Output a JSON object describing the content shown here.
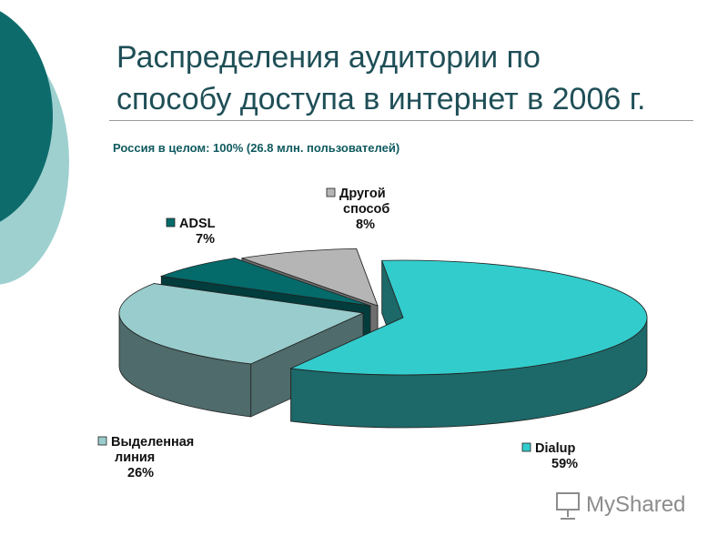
{
  "slide": {
    "title_lines": [
      "Распределения аудитории по",
      "способу доступа в интернет в 2006 г."
    ],
    "subtitle": "Россия в целом: 100% (26.8 млн. пользователей)"
  },
  "colors": {
    "deco_dark": "#0e6b6b",
    "deco_light": "#9ed0d0",
    "title": "#1f4f57",
    "subtitle": "#0f5a5f"
  },
  "watermark": {
    "text": "MyShared"
  },
  "chart_data": {
    "type": "pie",
    "style": "3d-exploded",
    "slices": [
      {
        "label_lines": [
          "Dialup"
        ],
        "pct_label": "59%",
        "value": 59,
        "top": "#33cccc",
        "side": "#1d6868"
      },
      {
        "label_lines": [
          "Выделенная",
          "линия"
        ],
        "pct_label": "26%",
        "value": 26,
        "top": "#99cccc",
        "side": "#4f6b6b"
      },
      {
        "label_lines": [
          "ADSL"
        ],
        "pct_label": "7%",
        "value": 7,
        "top": "#046a6a",
        "side": "#023c3c"
      },
      {
        "label_lines": [
          "Другой",
          "способ"
        ],
        "pct_label": "8%",
        "value": 8,
        "top": "#b5b5b5",
        "side": "#6e6e6e"
      }
    ],
    "legend": "labels-beside-slices"
  }
}
